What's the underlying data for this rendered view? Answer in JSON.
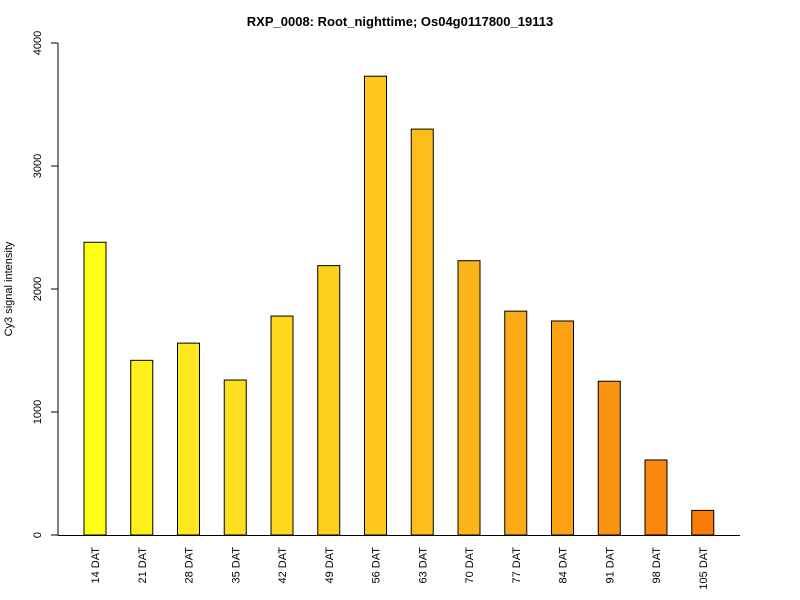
{
  "chart_data": {
    "type": "bar",
    "title": "RXP_0008: Root_nighttime; Os04g0117800_19113",
    "xlabel": "",
    "ylabel": "Cy3 signal intensity",
    "ylim": [
      0,
      4000
    ],
    "yticks": [
      0,
      1000,
      2000,
      3000,
      4000
    ],
    "categories": [
      "14 DAT",
      "21 DAT",
      "28 DAT",
      "35 DAT",
      "42 DAT",
      "49 DAT",
      "56 DAT",
      "63 DAT",
      "70 DAT",
      "77 DAT",
      "84 DAT",
      "91 DAT",
      "98 DAT",
      "105 DAT"
    ],
    "values": [
      2380,
      1420,
      1560,
      1260,
      1780,
      2190,
      3730,
      3300,
      2230,
      1820,
      1740,
      1250,
      610,
      200
    ],
    "colors": [
      "#ffff14",
      "#fff01a",
      "#ffe81d",
      "#ffe01e",
      "#ffd81e",
      "#fed01e",
      "#fdc71d",
      "#fdbe1b",
      "#fcb419",
      "#fcaa17",
      "#fca014",
      "#fb9511",
      "#fb880d",
      "#fb7b09"
    ],
    "grid": false,
    "legend": "none"
  }
}
